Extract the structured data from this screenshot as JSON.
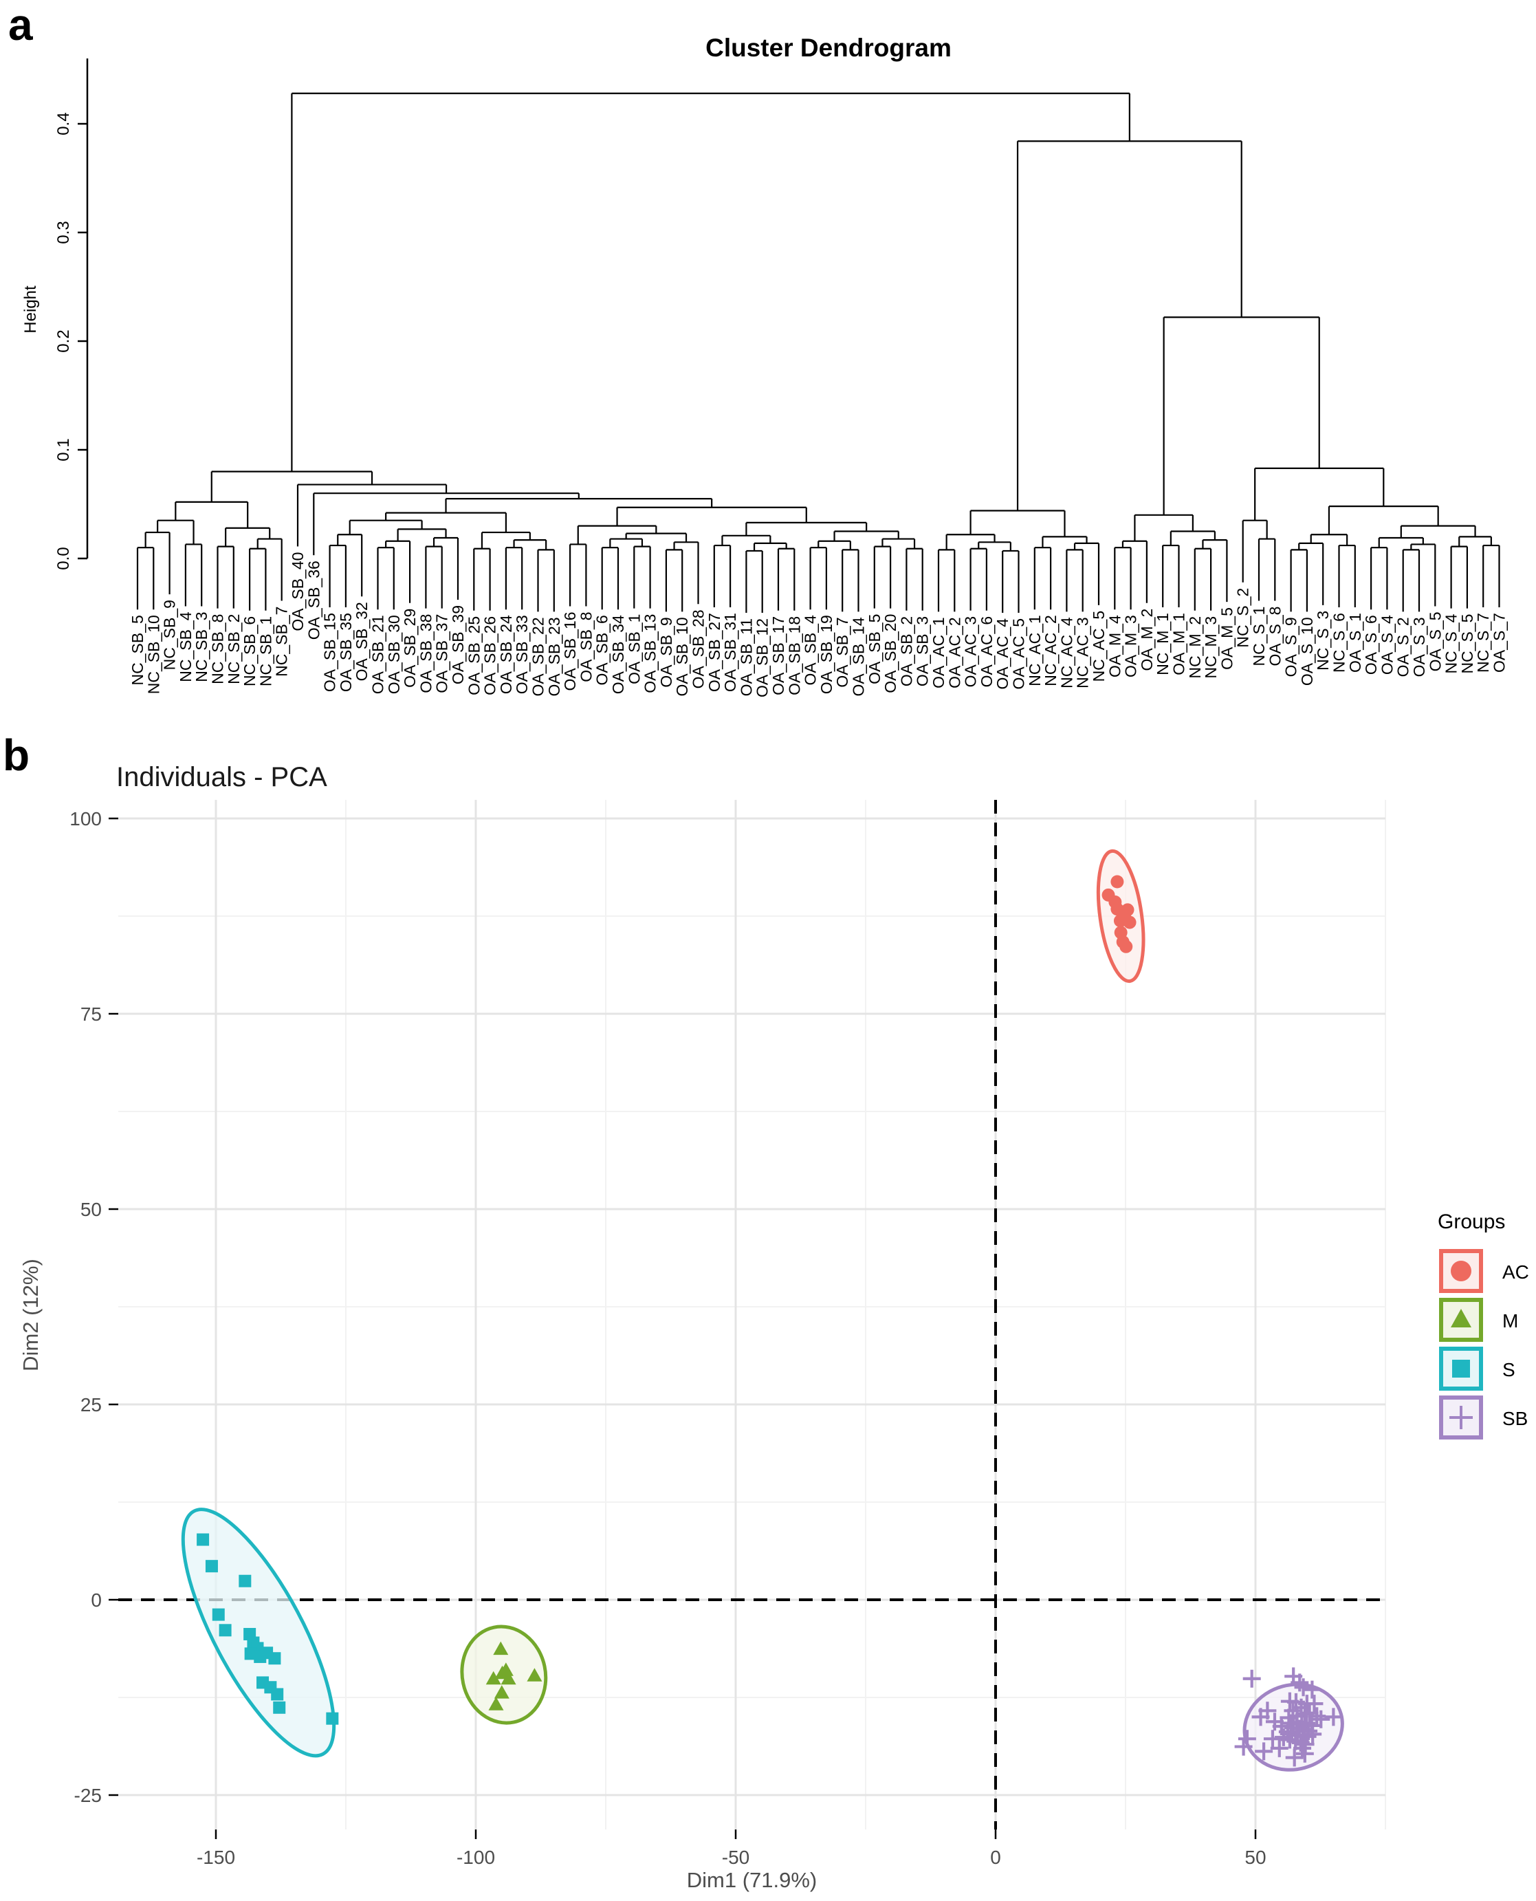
{
  "page": {
    "panel_a_label": "a",
    "panel_b_label": "b",
    "background": "#FFFFFF"
  },
  "style": {
    "dendro_line": "#000000",
    "axis_text": "#4D4D4D",
    "title_text": "#1A1A1A",
    "grid_major": "#E4E4E4",
    "grid_minor": "#F2F2F2",
    "ref_line": "#000000"
  },
  "chart_data": [
    {
      "type": "dendrogram",
      "title": "Cluster Dendrogram",
      "ylabel": "Height",
      "yticks": [
        "0.0",
        "0.1",
        "0.2",
        "0.3",
        "0.4"
      ],
      "ylim": [
        0,
        0.46
      ],
      "grid": "off",
      "leaves": [
        "NC_SB_5",
        "NC_SB_10",
        "NC_SB_9",
        "NC_SB_4",
        "NC_SB_3",
        "NC_SB_8",
        "NC_SB_2",
        "NC_SB_6",
        "NC_SB_1",
        "NC_SB_7",
        "OA_SB_40",
        "OA_SB_36",
        "OA_SB_15",
        "OA_SB_35",
        "OA_SB_32",
        "OA_SB_21",
        "OA_SB_30",
        "OA_SB_29",
        "OA_SB_38",
        "OA_SB_37",
        "OA_SB_39",
        "OA_SB_25",
        "OA_SB_26",
        "OA_SB_24",
        "OA_SB_33",
        "OA_SB_22",
        "OA_SB_23",
        "OA_SB_16",
        "OA_SB_8",
        "OA_SB_6",
        "OA_SB_34",
        "OA_SB_1",
        "OA_SB_13",
        "OA_SB_9",
        "OA_SB_10",
        "OA_SB_28",
        "OA_SB_27",
        "OA_SB_31",
        "OA_SB_11",
        "OA_SB_12",
        "OA_SB_17",
        "OA_SB_18",
        "OA_SB_4",
        "OA_SB_19",
        "OA_SB_7",
        "OA_SB_14",
        "OA_SB_5",
        "OA_SB_20",
        "OA_SB_2",
        "OA_SB_3",
        "OA_AC_1",
        "OA_AC_2",
        "OA_AC_3",
        "OA_AC_6",
        "OA_AC_4",
        "OA_AC_5",
        "NC_AC_1",
        "NC_AC_2",
        "NC_AC_4",
        "NC_AC_3",
        "NC_AC_5",
        "OA_M_4",
        "OA_M_3",
        "OA_M_2",
        "NC_M_1",
        "OA_M_1",
        "NC_M_2",
        "NC_M_3",
        "OA_M_5",
        "NC_S_2",
        "NC_S_1",
        "OA_S_8",
        "OA_S_9",
        "OA_S_10",
        "NC_S_3",
        "NC_S_6",
        "OA_S_1",
        "OA_S_6",
        "OA_S_4",
        "OA_S_2",
        "OA_S_3",
        "OA_S_5",
        "NC_S_4",
        "NC_S_5",
        "NC_S_7",
        "OA_S_7"
      ],
      "tree": [
        [
          [
            [
              [
                [
                  "NC_SB_5",
                  "NC_SB_10",
                  0.01
                ],
                "NC_SB_9",
                0.024
              ],
              [
                "NC_SB_4",
                "NC_SB_3",
                0.013
              ],
              0.035
            ],
            [
              [
                "NC_SB_8",
                "NC_SB_2",
                0.011
              ],
              [
                [
                  "NC_SB_6",
                  "NC_SB_1",
                  0.009
                ],
                "NC_SB_7",
                0.018
              ],
              0.028
            ],
            0.052
          ],
          [
            "OA_SB_40",
            [
              "OA_SB_36",
              [
                [
                  [
                    [
                      [
                        "OA_SB_15",
                        "OA_SB_35",
                        0.012
                      ],
                      "OA_SB_32",
                      0.022
                    ],
                    [
                      [
                        [
                          "OA_SB_21",
                          "OA_SB_30",
                          0.01
                        ],
                        "OA_SB_29",
                        0.016
                      ],
                      [
                        [
                          "OA_SB_38",
                          "OA_SB_37",
                          0.011
                        ],
                        "OA_SB_39",
                        0.019
                      ],
                      0.027
                    ],
                    0.035
                  ],
                  [
                    [
                      "OA_SB_25",
                      "OA_SB_26",
                      0.009
                    ],
                    [
                      [
                        "OA_SB_24",
                        "OA_SB_33",
                        0.01
                      ],
                      [
                        "OA_SB_22",
                        "OA_SB_23",
                        0.008
                      ],
                      0.017
                    ],
                    0.024
                  ],
                  0.042
                ],
                [
                  [
                    [
                      "OA_SB_16",
                      "OA_SB_8",
                      0.013
                    ],
                    [
                      [
                        [
                          "OA_SB_6",
                          "OA_SB_34",
                          0.01
                        ],
                        [
                          "OA_SB_1",
                          "OA_SB_13",
                          0.011
                        ],
                        0.018
                      ],
                      [
                        [
                          "OA_SB_9",
                          "OA_SB_10",
                          0.008
                        ],
                        "OA_SB_28",
                        0.015
                      ],
                      0.023
                    ],
                    0.03
                  ],
                  [
                    [
                      [
                        "OA_SB_27",
                        "OA_SB_31",
                        0.012
                      ],
                      [
                        [
                          "OA_SB_11",
                          "OA_SB_12",
                          0.007
                        ],
                        [
                          "OA_SB_17",
                          "OA_SB_18",
                          0.009
                        ],
                        0.014
                      ],
                      0.021
                    ],
                    [
                      [
                        [
                          "OA_SB_4",
                          "OA_SB_19",
                          0.01
                        ],
                        [
                          "OA_SB_7",
                          "OA_SB_14",
                          0.008
                        ],
                        0.016
                      ],
                      [
                        [
                          "OA_SB_5",
                          "OA_SB_20",
                          0.011
                        ],
                        [
                          "OA_SB_2",
                          "OA_SB_3",
                          0.009
                        ],
                        0.018
                      ],
                      0.025
                    ],
                    0.033
                  ],
                  0.047
                ],
                0.055
              ],
              0.06
            ],
            0.068
          ],
          0.08
        ],
        [
          [
            [
              [
                "OA_AC_1",
                "OA_AC_2",
                0.008
              ],
              [
                [
                  "OA_AC_3",
                  "OA_AC_6",
                  0.009
                ],
                [
                  "OA_AC_4",
                  "OA_AC_5",
                  0.007
                ],
                0.015
              ],
              0.022
            ],
            [
              [
                "NC_AC_1",
                "NC_AC_2",
                0.01
              ],
              [
                [
                  "NC_AC_4",
                  "NC_AC_3",
                  0.008
                ],
                "NC_AC_5",
                0.014
              ],
              0.02
            ],
            0.044
          ],
          [
            [
              [
                [
                  "OA_M_4",
                  "OA_M_3",
                  0.01
                ],
                "OA_M_2",
                0.016
              ],
              [
                [
                  "NC_M_1",
                  "OA_M_1",
                  0.012
                ],
                [
                  [
                    "NC_M_2",
                    "NC_M_3",
                    0.009
                  ],
                  "OA_M_5",
                  0.017
                ],
                0.025
              ],
              0.04
            ],
            [
              [
                "NC_S_2",
                [
                  "NC_S_1",
                  "OA_S_8",
                  0.018
                ],
                0.035
              ],
              [
                [
                  [
                    [
                      "OA_S_9",
                      "OA_S_10",
                      0.008
                    ],
                    "NC_S_3",
                    0.014
                  ],
                  [
                    "NC_S_6",
                    "OA_S_1",
                    0.012
                  ],
                  0.022
                ],
                [
                  [
                    [
                      "OA_S_6",
                      "OA_S_4",
                      0.01
                    ],
                    [
                      [
                        "OA_S_2",
                        "OA_S_3",
                        0.008
                      ],
                      "OA_S_5",
                      0.013
                    ],
                    0.019
                  ],
                  [
                    [
                      "NC_S_4",
                      "NC_S_5",
                      0.011
                    ],
                    [
                      "NC_S_7",
                      "OA_S_7",
                      0.012
                    ],
                    0.02
                  ],
                  0.03
                ],
                0.048
              ],
              0.083
            ],
            0.222
          ],
          0.384
        ],
        0.428
      ]
    },
    {
      "type": "scatter",
      "title": "Individuals - PCA",
      "xlabel": "Dim1 (71.9%)",
      "ylabel": "Dim2 (12%)",
      "xticks": [
        -150,
        -100,
        -50,
        0,
        50
      ],
      "yticks": [
        100,
        75,
        50,
        25,
        0,
        -25
      ],
      "xlim": [
        -169,
        75
      ],
      "ylim": [
        -29,
        102
      ],
      "grid": "on",
      "reference_lines": {
        "vline_x": 0,
        "hline_y": 0,
        "style": "dashed"
      },
      "legend": {
        "title": "Groups",
        "position": "right",
        "entries": [
          {
            "label": "AC",
            "shape": "circle"
          },
          {
            "label": "M",
            "shape": "triangle"
          },
          {
            "label": "S",
            "shape": "square"
          },
          {
            "label": "SB",
            "shape": "plus"
          }
        ]
      },
      "series": [
        {
          "name": "AC",
          "shape": "circle",
          "color": "#EE6A5F",
          "fill_tint": "#FCEDEB",
          "ellipse": {
            "cx": 24.1,
            "cy": 87.5,
            "rx": 4.0,
            "ry": 8.4,
            "angle": -8
          },
          "points": [
            [
              23.4,
              91.9
            ],
            [
              21.7,
              90.2
            ],
            [
              23.0,
              89.3
            ],
            [
              23.4,
              88.4
            ],
            [
              25.4,
              88.3
            ],
            [
              24.0,
              86.9
            ],
            [
              25.8,
              86.7
            ],
            [
              24.8,
              87.6
            ],
            [
              24.1,
              85.4
            ],
            [
              24.5,
              84.2
            ],
            [
              25.1,
              83.6
            ]
          ]
        },
        {
          "name": "M",
          "shape": "triangle",
          "color": "#74A82B",
          "fill_tint": "#F1F5E4",
          "ellipse": {
            "cx": -94.6,
            "cy": -9.6,
            "rx": 8.0,
            "ry": 6.2,
            "angle": -12
          },
          "points": [
            [
              -95.2,
              -6.3
            ],
            [
              -94.9,
              -9.4
            ],
            [
              -96.6,
              -10.1
            ],
            [
              -93.7,
              -10.1
            ],
            [
              -88.7,
              -9.7
            ],
            [
              -95.0,
              -11.9
            ],
            [
              -96.1,
              -13.4
            ],
            [
              -94.2,
              -9.0
            ]
          ]
        },
        {
          "name": "S",
          "shape": "square",
          "color": "#1FB6C1",
          "fill_tint": "#E5F6F8",
          "ellipse": {
            "cx": -141.8,
            "cy": -4.2,
            "rx": 8.5,
            "ry": 17.6,
            "angle": -28
          },
          "points": [
            [
              -152.5,
              7.7
            ],
            [
              -150.8,
              4.3
            ],
            [
              -144.4,
              2.4
            ],
            [
              -149.5,
              -1.9
            ],
            [
              -148.2,
              -3.9
            ],
            [
              -143.5,
              -4.4
            ],
            [
              -142.8,
              -5.5
            ],
            [
              -142.0,
              -6.2
            ],
            [
              -143.3,
              -6.9
            ],
            [
              -141.5,
              -7.3
            ],
            [
              -138.7,
              -7.5
            ],
            [
              -140.2,
              -6.8
            ],
            [
              -141.0,
              -10.6
            ],
            [
              -139.5,
              -11.2
            ],
            [
              -138.2,
              -12.1
            ],
            [
              -137.8,
              -13.8
            ],
            [
              -127.6,
              -15.2
            ]
          ]
        },
        {
          "name": "SB",
          "shape": "plus",
          "color": "#A184C4",
          "fill_tint": "#F3EFF8",
          "ellipse": {
            "cx": 57.3,
            "cy": -16.3,
            "rx": 9.5,
            "ry": 5.4,
            "angle": -15
          },
          "points": [
            [
              49.3,
              -10.1
            ],
            [
              57.3,
              -9.8
            ],
            [
              58.5,
              -10.6
            ],
            [
              59.2,
              -11.2
            ],
            [
              60.9,
              -11.5
            ],
            [
              56.6,
              -13.0
            ],
            [
              57.8,
              -13.1
            ],
            [
              59.9,
              -13.3
            ],
            [
              61.3,
              -13.3
            ],
            [
              58.8,
              -13.8
            ],
            [
              57.2,
              -14.2
            ],
            [
              59.5,
              -14.6
            ],
            [
              60.4,
              -14.5
            ],
            [
              58.0,
              -14.9
            ],
            [
              56.4,
              -15.1
            ],
            [
              61.8,
              -14.9
            ],
            [
              62.6,
              -15.3
            ],
            [
              65.0,
              -15.0
            ],
            [
              53.7,
              -15.6
            ],
            [
              55.0,
              -16.2
            ],
            [
              56.8,
              -15.8
            ],
            [
              57.9,
              -15.7
            ],
            [
              58.9,
              -15.9
            ],
            [
              59.8,
              -15.8
            ],
            [
              60.8,
              -16.1
            ],
            [
              57.3,
              -16.4
            ],
            [
              58.4,
              -16.5
            ],
            [
              59.4,
              -16.6
            ],
            [
              60.2,
              -16.8
            ],
            [
              56.2,
              -16.9
            ],
            [
              57.0,
              -17.2
            ],
            [
              58.1,
              -17.3
            ],
            [
              59.1,
              -17.4
            ],
            [
              60.0,
              -17.5
            ],
            [
              61.0,
              -17.2
            ],
            [
              55.4,
              -17.6
            ],
            [
              56.6,
              -17.9
            ],
            [
              57.7,
              -18.1
            ],
            [
              58.7,
              -18.3
            ],
            [
              59.6,
              -18.5
            ],
            [
              53.3,
              -17.8
            ],
            [
              51.0,
              -15.0
            ],
            [
              52.3,
              -14.2
            ],
            [
              48.4,
              -17.8
            ],
            [
              47.7,
              -18.8
            ],
            [
              51.6,
              -19.4
            ],
            [
              54.6,
              -19.0
            ],
            [
              59.0,
              -19.0
            ],
            [
              59.5,
              -19.7
            ],
            [
              57.5,
              -20.2
            ]
          ]
        }
      ]
    }
  ]
}
